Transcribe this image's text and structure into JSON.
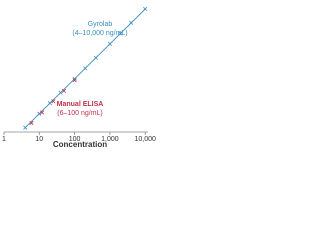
{
  "chart_data": {
    "type": "line",
    "xlabel": "Concentration",
    "log_x": true,
    "log_y": true,
    "xlim": [
      1,
      12000
    ],
    "xticks": [
      1,
      10,
      100,
      {
        "value": 1000,
        "label": "1,000"
      },
      {
        "value": 10000,
        "label": "10,000"
      }
    ],
    "ylim": [
      3,
      13000
    ],
    "series": [
      {
        "name": "Gyrolab",
        "color": "#3a8cc0",
        "x": [
          4,
          10,
          20,
          40,
          100,
          200,
          400,
          1000,
          2000,
          4000,
          10000
        ],
        "values": [
          4,
          10,
          20,
          40,
          100,
          200,
          400,
          1000,
          2000,
          4000,
          10000
        ]
      },
      {
        "name": "Manual ELISA",
        "color": "#c0304a",
        "x": [
          6,
          12,
          25,
          50,
          100
        ],
        "values": [
          6,
          12,
          25,
          50,
          100
        ]
      }
    ],
    "annotations": [
      {
        "text": "Gyrolab",
        "color": "#3a8cc0"
      },
      {
        "text": "(4–10,000 ng/mL)",
        "color": "#3a8cc0"
      },
      {
        "text": "Manual ELISA",
        "color": "#c0304a"
      },
      {
        "text": "(6–100 ng/mL)",
        "color": "#c0304a"
      }
    ]
  }
}
